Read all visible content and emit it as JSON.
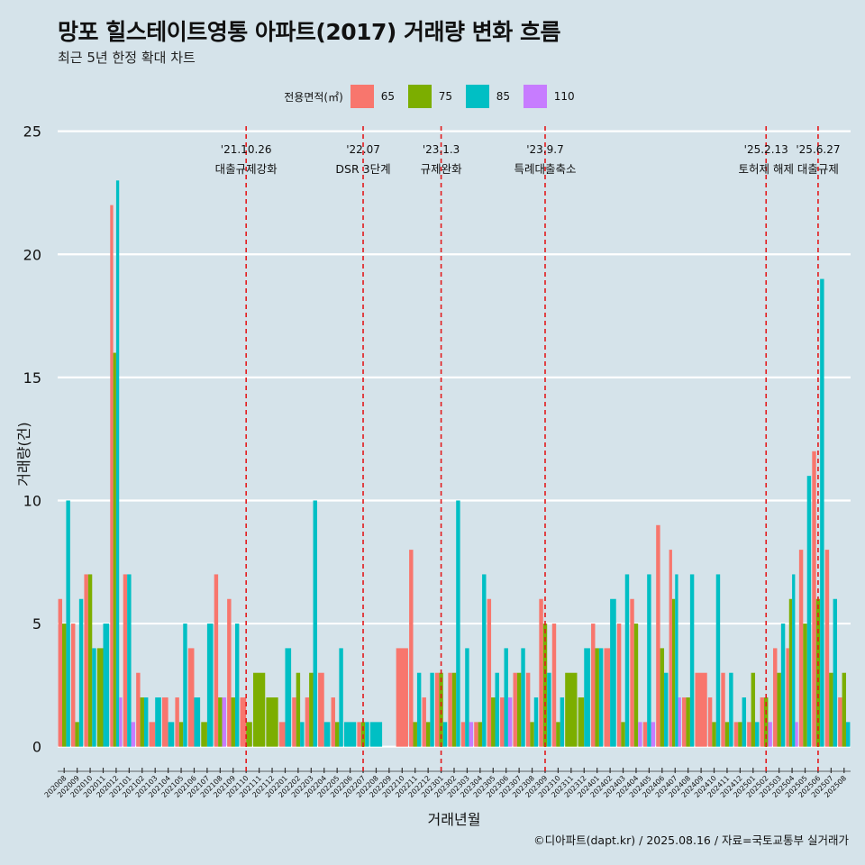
{
  "header": {
    "title": "망포 힐스테이트영통 아파트(2017) 거래량 변화 흐름",
    "subtitle": "최근 5년 한정 확대 차트"
  },
  "legend": {
    "title": "전용면적(㎡)",
    "items": [
      {
        "label": "65",
        "color": "#f8766d"
      },
      {
        "label": "75",
        "color": "#7cae00"
      },
      {
        "label": "85",
        "color": "#00bfc4"
      },
      {
        "label": "110",
        "color": "#c77cff"
      }
    ]
  },
  "caption": "©디아파트(dapt.kr) / 2025.08.16 / 자료=국토교통부 실거래가",
  "chart_data": {
    "type": "bar",
    "xlabel": "거래년월",
    "ylabel": "거래량(건)",
    "ylim": [
      -1,
      25.5
    ],
    "yticks": [
      0,
      5,
      10,
      15,
      20,
      25
    ],
    "grid": true,
    "legend_position": "top",
    "categories": [
      "202008",
      "202009",
      "202010",
      "202011",
      "202012",
      "202101",
      "202102",
      "202103",
      "202104",
      "202105",
      "202106",
      "202107",
      "202108",
      "202109",
      "202110",
      "202111",
      "202112",
      "202201",
      "202202",
      "202203",
      "202204",
      "202205",
      "202206",
      "202207",
      "202208",
      "202209",
      "202210",
      "202211",
      "202212",
      "202301",
      "202302",
      "202303",
      "202304",
      "202305",
      "202306",
      "202307",
      "202308",
      "202309",
      "202310",
      "202311",
      "202312",
      "202401",
      "202402",
      "202403",
      "202404",
      "202405",
      "202406",
      "202407",
      "202408",
      "202409",
      "202410",
      "202411",
      "202412",
      "202501",
      "202502",
      "202503",
      "202504",
      "202505",
      "202506",
      "202507",
      "202508"
    ],
    "bars": [
      [
        [
          65,
          6
        ],
        [
          75,
          5
        ],
        [
          85,
          10
        ]
      ],
      [
        [
          65,
          5
        ],
        [
          75,
          1
        ],
        [
          85,
          6
        ]
      ],
      [
        [
          65,
          7
        ],
        [
          75,
          7
        ],
        [
          85,
          4
        ]
      ],
      [
        [
          75,
          4
        ],
        [
          85,
          5
        ]
      ],
      [
        [
          65,
          22
        ],
        [
          75,
          16
        ],
        [
          85,
          23
        ],
        [
          110,
          2
        ]
      ],
      [
        [
          65,
          7
        ],
        [
          85,
          7
        ],
        [
          110,
          1
        ]
      ],
      [
        [
          65,
          3
        ],
        [
          75,
          2
        ],
        [
          85,
          2
        ]
      ],
      [
        [
          65,
          1
        ],
        [
          85,
          2
        ]
      ],
      [
        [
          65,
          2
        ],
        [
          85,
          1
        ]
      ],
      [
        [
          65,
          2
        ],
        [
          75,
          1
        ],
        [
          85,
          5
        ]
      ],
      [
        [
          65,
          4
        ],
        [
          85,
          2
        ]
      ],
      [
        [
          75,
          1
        ],
        [
          85,
          5
        ]
      ],
      [
        [
          65,
          7
        ],
        [
          75,
          2
        ],
        [
          110,
          2
        ]
      ],
      [
        [
          65,
          6
        ],
        [
          75,
          2
        ],
        [
          85,
          5
        ]
      ],
      [
        [
          65,
          2
        ],
        [
          75,
          1
        ]
      ],
      [
        [
          75,
          3
        ]
      ],
      [
        [
          75,
          2
        ]
      ],
      [
        [
          65,
          1
        ],
        [
          85,
          4
        ]
      ],
      [
        [
          65,
          2
        ],
        [
          75,
          3
        ],
        [
          85,
          1
        ]
      ],
      [
        [
          65,
          2
        ],
        [
          75,
          3
        ],
        [
          85,
          10
        ]
      ],
      [
        [
          65,
          3
        ],
        [
          85,
          1
        ]
      ],
      [
        [
          65,
          2
        ],
        [
          75,
          1
        ],
        [
          85,
          4
        ]
      ],
      [
        [
          85,
          1
        ]
      ],
      [
        [
          65,
          1
        ],
        [
          75,
          1
        ],
        [
          85,
          1
        ]
      ],
      [
        [
          85,
          1
        ]
      ],
      [],
      [
        [
          65,
          4
        ]
      ],
      [
        [
          65,
          8
        ],
        [
          75,
          1
        ],
        [
          85,
          3
        ]
      ],
      [
        [
          65,
          2
        ],
        [
          75,
          1
        ],
        [
          85,
          3
        ]
      ],
      [
        [
          65,
          3
        ],
        [
          75,
          3
        ],
        [
          85,
          1
        ]
      ],
      [
        [
          65,
          3
        ],
        [
          75,
          3
        ],
        [
          85,
          10
        ]
      ],
      [
        [
          65,
          1
        ],
        [
          85,
          4
        ],
        [
          110,
          1
        ]
      ],
      [
        [
          65,
          1
        ],
        [
          75,
          1
        ],
        [
          85,
          7
        ]
      ],
      [
        [
          65,
          6
        ],
        [
          75,
          2
        ],
        [
          85,
          3
        ]
      ],
      [
        [
          65,
          2
        ],
        [
          85,
          4
        ],
        [
          110,
          2
        ]
      ],
      [
        [
          65,
          3
        ],
        [
          75,
          3
        ],
        [
          85,
          4
        ]
      ],
      [
        [
          65,
          3
        ],
        [
          75,
          1
        ],
        [
          85,
          2
        ]
      ],
      [
        [
          65,
          6
        ],
        [
          75,
          5
        ],
        [
          85,
          3
        ]
      ],
      [
        [
          65,
          5
        ],
        [
          75,
          1
        ],
        [
          85,
          2
        ]
      ],
      [
        [
          75,
          3
        ]
      ],
      [
        [
          75,
          2
        ],
        [
          85,
          4
        ]
      ],
      [
        [
          65,
          5
        ],
        [
          75,
          4
        ],
        [
          85,
          4
        ]
      ],
      [
        [
          65,
          4
        ],
        [
          85,
          6
        ]
      ],
      [
        [
          65,
          5
        ],
        [
          75,
          1
        ],
        [
          85,
          7
        ]
      ],
      [
        [
          65,
          6
        ],
        [
          75,
          5
        ],
        [
          110,
          1
        ]
      ],
      [
        [
          65,
          1
        ],
        [
          85,
          7
        ],
        [
          110,
          1
        ]
      ],
      [
        [
          65,
          9
        ],
        [
          75,
          4
        ],
        [
          85,
          3
        ]
      ],
      [
        [
          65,
          8
        ],
        [
          75,
          6
        ],
        [
          85,
          7
        ],
        [
          110,
          2
        ]
      ],
      [
        [
          65,
          2
        ],
        [
          75,
          2
        ],
        [
          85,
          7
        ]
      ],
      [
        [
          65,
          3
        ]
      ],
      [
        [
          65,
          2
        ],
        [
          75,
          1
        ],
        [
          85,
          7
        ]
      ],
      [
        [
          65,
          3
        ],
        [
          75,
          1
        ],
        [
          85,
          3
        ]
      ],
      [
        [
          65,
          1
        ],
        [
          75,
          1
        ],
        [
          85,
          2
        ]
      ],
      [
        [
          65,
          1
        ],
        [
          75,
          3
        ],
        [
          85,
          1
        ]
      ],
      [
        [
          65,
          2
        ],
        [
          75,
          2
        ],
        [
          110,
          1
        ]
      ],
      [
        [
          65,
          4
        ],
        [
          75,
          3
        ],
        [
          85,
          5
        ]
      ],
      [
        [
          65,
          4
        ],
        [
          75,
          6
        ],
        [
          85,
          7
        ],
        [
          110,
          1
        ]
      ],
      [
        [
          65,
          8
        ],
        [
          75,
          5
        ],
        [
          85,
          11
        ]
      ],
      [
        [
          65,
          12
        ],
        [
          75,
          6
        ],
        [
          85,
          19
        ]
      ],
      [
        [
          65,
          8
        ],
        [
          75,
          3
        ],
        [
          85,
          6
        ]
      ],
      [
        [
          65,
          2
        ],
        [
          75,
          3
        ],
        [
          85,
          1
        ]
      ]
    ],
    "events": [
      {
        "month": "202110",
        "date": "'21.10.26",
        "label": "대출규제강화"
      },
      {
        "month": "202207",
        "date": "'22.07",
        "label": "DSR 3단계"
      },
      {
        "month": "202301",
        "date": "'23.1.3",
        "label": "규제완화"
      },
      {
        "month": "202309",
        "date": "'23.9.7",
        "label": "특례대출축소"
      },
      {
        "month": "202502",
        "date": "'25.2.13",
        "label": "토허제 해제"
      },
      {
        "month": "202506",
        "date": "'25.6.27",
        "label": "대출규제"
      }
    ]
  }
}
